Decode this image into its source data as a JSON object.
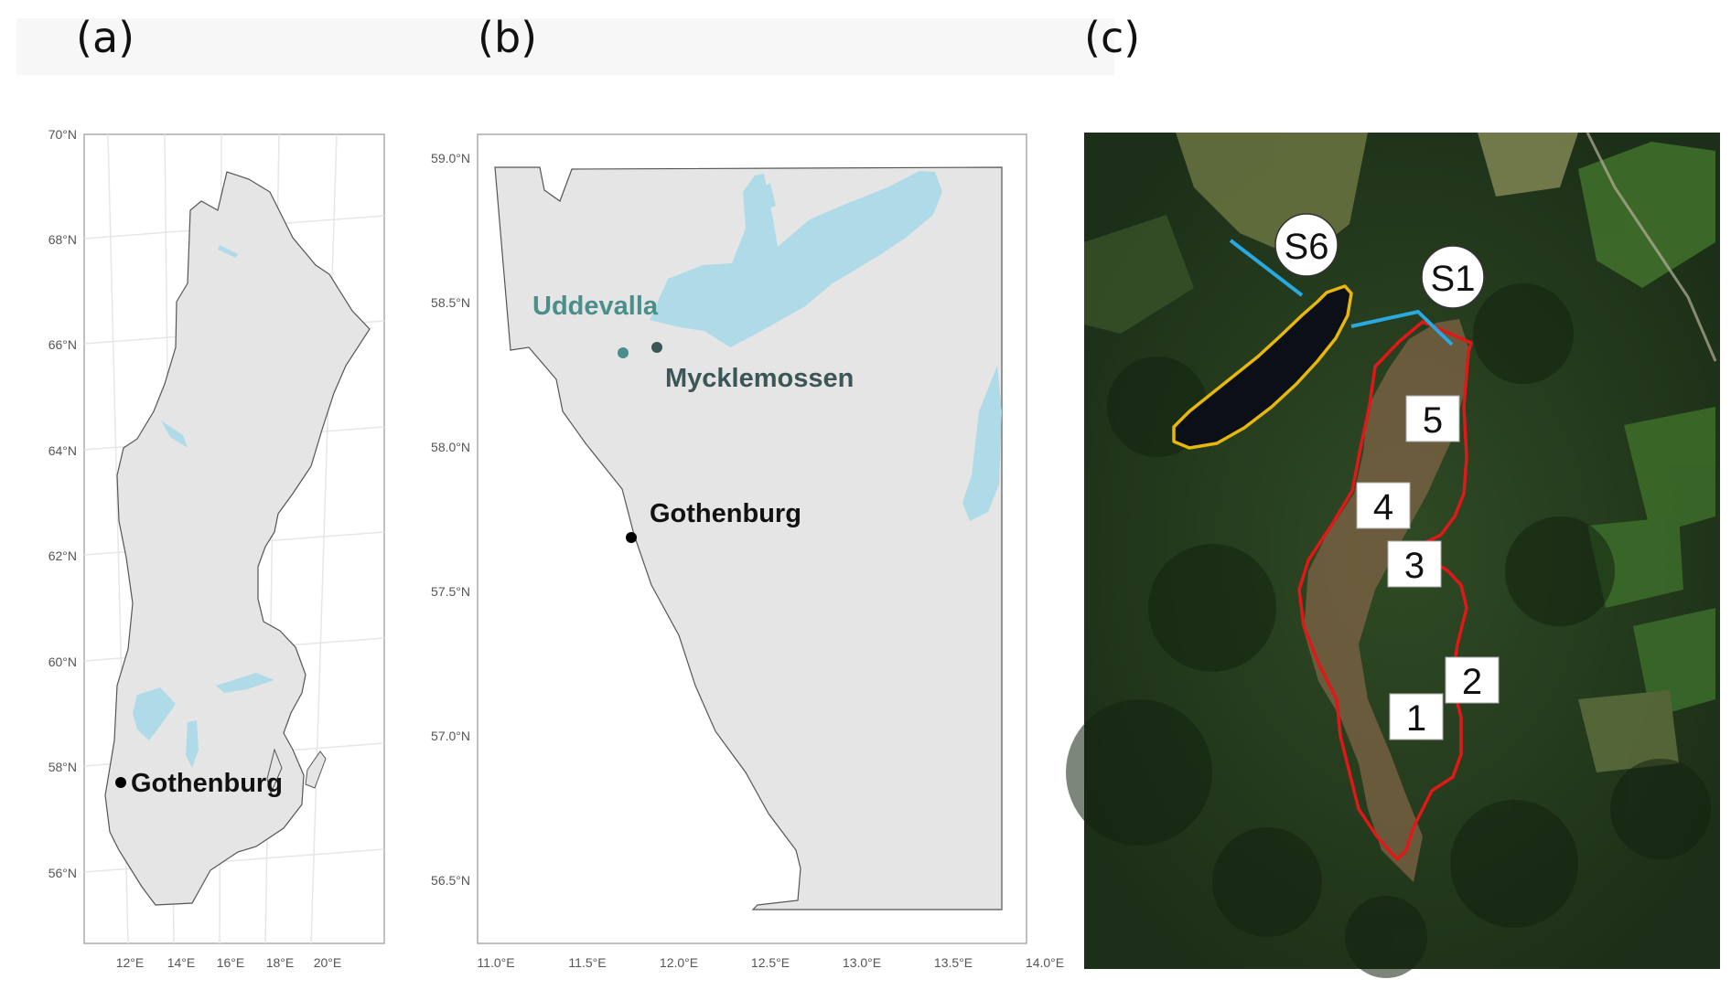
{
  "panels": {
    "a": {
      "label": "(a)",
      "lat_ticks": [
        "70°N",
        "68°N",
        "66°N",
        "64°N",
        "62°N",
        "60°N",
        "58°N",
        "56°N"
      ],
      "lon_ticks": [
        "12°E",
        "14°E",
        "16°E",
        "18°E",
        "20°E"
      ],
      "city": "Gothenburg"
    },
    "b": {
      "label": "(b)",
      "lat_ticks": [
        "59.0°N",
        "58.5°N",
        "58.0°N",
        "57.5°N",
        "57.0°N",
        "56.5°N"
      ],
      "lon_ticks": [
        "11.0°E",
        "11.5°E",
        "12.0°E",
        "12.5°E",
        "13.0°E",
        "13.5°E",
        "14.0°E"
      ],
      "sites": {
        "uddevalla": "Uddevalla",
        "mycklemossen": "Mycklemossen",
        "gothenburg": "Gothenburg"
      }
    },
    "c": {
      "label": "(c)",
      "streams": {
        "s6": "S6",
        "s1": "S1"
      },
      "plots": [
        "1",
        "2",
        "3",
        "4",
        "5"
      ]
    }
  },
  "colors": {
    "land": "#e5e5e5",
    "water": "#aedbe7",
    "boundary_mire": "#e01818",
    "boundary_lake": "#e8b70c",
    "stream": "#2aa8e0"
  }
}
